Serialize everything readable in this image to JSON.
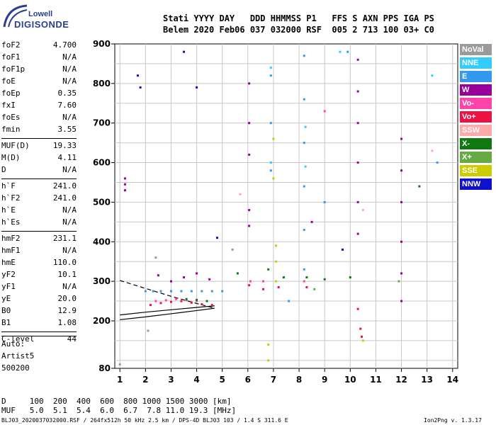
{
  "logo": {
    "top": "Lowell",
    "bottom": "DIGISONDE"
  },
  "header": {
    "line1": "Stati YYYY DAY   DDD HHMMSS P1   FFS S AXN PPS IGA PS",
    "line2": "Belem 2020 Feb06 037 032000 RSF  005 2 713 100 03+ C0"
  },
  "params": [
    {
      "name": "foF2",
      "value": "4.700"
    },
    {
      "name": "foF1",
      "value": "N/A"
    },
    {
      "name": "foF1p",
      "value": "N/A"
    },
    {
      "name": "foE",
      "value": "N/A"
    },
    {
      "name": "foEp",
      "value": "0.35"
    },
    {
      "name": "fxI",
      "value": "7.60"
    },
    {
      "name": "foEs",
      "value": "N/A"
    },
    {
      "name": "fmin",
      "value": "3.55"
    },
    {
      "name": "MUF(D)",
      "value": "19.33"
    },
    {
      "name": "M(D)",
      "value": "4.11"
    },
    {
      "name": "D",
      "value": "N/A"
    },
    {
      "name": "h`F",
      "value": "241.0"
    },
    {
      "name": "h`F2",
      "value": "241.0"
    },
    {
      "name": "h`E",
      "value": "N/A"
    },
    {
      "name": "h`Es",
      "value": "N/A"
    },
    {
      "name": "hmF2",
      "value": "231.1"
    },
    {
      "name": "hmF1",
      "value": "N/A"
    },
    {
      "name": "hmE",
      "value": "110.0"
    },
    {
      "name": "yF2",
      "value": "10.1"
    },
    {
      "name": "yF1",
      "value": "N/A"
    },
    {
      "name": "yE",
      "value": "20.0"
    },
    {
      "name": "B0",
      "value": "12.9"
    },
    {
      "name": "B1",
      "value": "1.08"
    },
    {
      "name": "C-level",
      "value": "44"
    }
  ],
  "autoscale": {
    "line1": "Auto:",
    "line2": "Artist5",
    "line3": "500200"
  },
  "legend": [
    {
      "label": "NoVal",
      "color": "#9a9a9a"
    },
    {
      "label": "NNE",
      "color": "#33ccff"
    },
    {
      "label": "E",
      "color": "#3399ee"
    },
    {
      "label": "W",
      "color": "#990099"
    },
    {
      "label": "Vo-",
      "color": "#ff44aa"
    },
    {
      "label": "Vo+",
      "color": "#ee1144"
    },
    {
      "label": "SSW",
      "color": "#ffaaaa"
    },
    {
      "label": "X-",
      "color": "#117711"
    },
    {
      "label": "X+",
      "color": "#66aa44"
    },
    {
      "label": "SSE",
      "color": "#cccc00"
    },
    {
      "label": "NNW",
      "color": "#1111cc"
    }
  ],
  "footer": {
    "d_row": "D     100  200  400  600  800 1000 1500 3000 [km]",
    "muf_row": "MUF   5.0  5.1  5.4  6.0  6.7  7.8 11.0 19.3 [MHz]",
    "file": "BLJ03_2020037032000.RSF / 264fx512h 50 kHz 2.5 km / DPS-4D BLJ03 103 / 1.4 S 311.6 E",
    "version": "Ion2Png v. 1.3.17"
  },
  "chart_data": {
    "type": "scatter",
    "title": "",
    "xlabel": "",
    "ylabel": "",
    "xlim": [
      0.8,
      14.2
    ],
    "ylim": [
      80,
      900
    ],
    "xticks": [
      1,
      2,
      3,
      4,
      5,
      6,
      7,
      8,
      9,
      10,
      11,
      12,
      13,
      14
    ],
    "yticks": [
      80,
      200,
      300,
      400,
      500,
      600,
      700,
      800,
      900
    ],
    "grid": true,
    "series": [
      {
        "name": "W",
        "color": "#990099",
        "points": [
          [
            1.2,
            560
          ],
          [
            1.2,
            545
          ],
          [
            1.2,
            530
          ],
          [
            2.5,
            315
          ],
          [
            3.0,
            300
          ],
          [
            3.5,
            310
          ],
          [
            4.0,
            320
          ],
          [
            4.5,
            305
          ],
          [
            6.05,
            800
          ],
          [
            6.05,
            700
          ],
          [
            6.05,
            620
          ],
          [
            6.05,
            480
          ],
          [
            6.05,
            440
          ],
          [
            8.5,
            450
          ],
          [
            10.3,
            860
          ],
          [
            10.3,
            780
          ],
          [
            10.3,
            700
          ],
          [
            10.3,
            600
          ],
          [
            10.3,
            500
          ],
          [
            10.3,
            420
          ],
          [
            12.0,
            660
          ],
          [
            12.0,
            580
          ],
          [
            12.0,
            500
          ],
          [
            12.0,
            400
          ],
          [
            12.0,
            320
          ],
          [
            12.0,
            250
          ]
        ]
      },
      {
        "name": "E",
        "color": "#3399ee",
        "points": [
          [
            2.0,
            275
          ],
          [
            2.3,
            275
          ],
          [
            2.6,
            275
          ],
          [
            3.0,
            275
          ],
          [
            3.4,
            275
          ],
          [
            3.8,
            275
          ],
          [
            4.2,
            275
          ],
          [
            4.6,
            275
          ],
          [
            5.0,
            275
          ],
          [
            6.9,
            820
          ],
          [
            6.9,
            700
          ],
          [
            6.9,
            580
          ],
          [
            7.6,
            250
          ],
          [
            8.2,
            870
          ],
          [
            8.2,
            760
          ],
          [
            8.2,
            650
          ],
          [
            8.2,
            540
          ],
          [
            8.2,
            430
          ],
          [
            8.2,
            330
          ],
          [
            9.0,
            500
          ],
          [
            9.9,
            880
          ],
          [
            13.4,
            600
          ]
        ]
      },
      {
        "name": "NNE",
        "color": "#33ccff",
        "points": [
          [
            6.9,
            840
          ],
          [
            6.9,
            600
          ],
          [
            8.25,
            690
          ],
          [
            8.25,
            590
          ],
          [
            9.6,
            880
          ],
          [
            13.2,
            820
          ]
        ]
      },
      {
        "name": "Vo+",
        "color": "#ee1144",
        "points": [
          [
            2.2,
            240
          ],
          [
            2.6,
            245
          ],
          [
            3.0,
            248
          ],
          [
            3.4,
            250
          ],
          [
            3.8,
            246
          ],
          [
            4.2,
            242
          ],
          [
            4.6,
            240
          ],
          [
            6.05,
            290
          ],
          [
            6.6,
            280
          ],
          [
            7.2,
            285
          ],
          [
            8.3,
            285
          ],
          [
            10.3,
            230
          ],
          [
            10.4,
            180
          ],
          [
            10.45,
            160
          ]
        ]
      },
      {
        "name": "Vo-",
        "color": "#ff44aa",
        "points": [
          [
            2.4,
            250
          ],
          [
            2.8,
            252
          ],
          [
            3.2,
            255
          ],
          [
            3.6,
            252
          ],
          [
            4.0,
            250
          ],
          [
            6.1,
            300
          ],
          [
            6.6,
            300
          ],
          [
            8.2,
            300
          ],
          [
            9.0,
            730
          ]
        ]
      },
      {
        "name": "X-",
        "color": "#117711",
        "points": [
          [
            3.6,
            255
          ],
          [
            4.0,
            253
          ],
          [
            4.4,
            250
          ],
          [
            5.6,
            320
          ],
          [
            6.8,
            330
          ],
          [
            7.4,
            310
          ],
          [
            8.3,
            310
          ],
          [
            9.0,
            305
          ],
          [
            10.0,
            310
          ],
          [
            12.7,
            540
          ]
        ]
      },
      {
        "name": "SSE",
        "color": "#cccc00",
        "points": [
          [
            7.0,
            660
          ],
          [
            7.0,
            560
          ],
          [
            7.1,
            390
          ],
          [
            7.1,
            350
          ],
          [
            7.1,
            300
          ],
          [
            6.8,
            140
          ],
          [
            6.8,
            100
          ],
          [
            10.5,
            150
          ]
        ]
      },
      {
        "name": "NNW",
        "color": "#1111cc",
        "points": [
          [
            1.7,
            820
          ],
          [
            1.8,
            790
          ],
          [
            3.5,
            880
          ],
          [
            4.0,
            790
          ],
          [
            4.8,
            410
          ],
          [
            9.7,
            380
          ]
        ]
      },
      {
        "name": "SSW",
        "color": "#ffaaaa",
        "points": [
          [
            5.7,
            520
          ],
          [
            10.5,
            480
          ],
          [
            13.2,
            630
          ]
        ]
      },
      {
        "name": "X+",
        "color": "#66aa44",
        "points": [
          [
            8.6,
            280
          ],
          [
            11.9,
            300
          ]
        ]
      },
      {
        "name": "NoVal",
        "color": "#9a9a9a",
        "points": [
          [
            1.0,
            90
          ],
          [
            2.1,
            175
          ],
          [
            2.4,
            360
          ],
          [
            5.4,
            380
          ]
        ]
      }
    ],
    "profile_curve": [
      [
        1.0,
        302
      ],
      [
        2.0,
        282
      ],
      [
        3.0,
        262
      ],
      [
        4.0,
        244
      ],
      [
        4.7,
        232
      ]
    ],
    "trace_upper": [
      [
        1.0,
        215
      ],
      [
        2.0,
        222
      ],
      [
        3.0,
        228
      ],
      [
        4.0,
        234
      ],
      [
        4.7,
        238
      ]
    ],
    "trace_lower": [
      [
        1.0,
        203
      ],
      [
        2.0,
        210
      ],
      [
        3.0,
        218
      ],
      [
        4.0,
        226
      ],
      [
        4.7,
        232
      ]
    ]
  }
}
